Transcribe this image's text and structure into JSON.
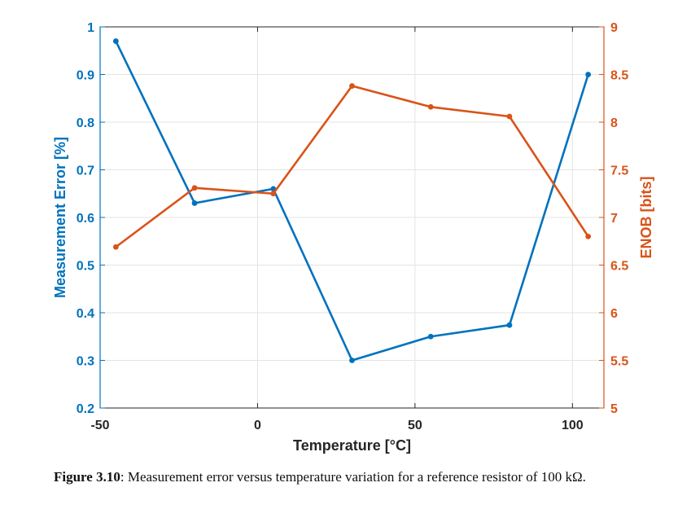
{
  "chart_data": {
    "type": "line",
    "x": [
      -45,
      -20,
      5,
      30,
      55,
      80,
      105
    ],
    "xlim": [
      -50,
      110
    ],
    "xticks": [
      "-50",
      "0",
      "50",
      "100"
    ],
    "xlabel": "Temperature [°C]",
    "grid": true,
    "series": [
      {
        "axis": "left",
        "color": "#0072BD",
        "values": [
          0.97,
          0.63,
          0.66,
          0.3,
          0.35,
          0.374,
          0.9
        ]
      },
      {
        "axis": "right",
        "color": "#D95319",
        "values": [
          6.69,
          7.31,
          7.25,
          8.38,
          8.16,
          8.06,
          6.8
        ]
      }
    ],
    "ylabel_left": "Measurement Error [%]",
    "ylim_left": [
      0.2,
      1
    ],
    "yticks_left": [
      "0.2",
      "0.3",
      "0.4",
      "0.5",
      "0.6",
      "0.7",
      "0.8",
      "0.9",
      "1"
    ],
    "ylabel_right": "ENOB [bits]",
    "ylim_right": [
      5,
      9
    ],
    "yticks_right": [
      "5",
      "5.5",
      "6",
      "6.5",
      "7",
      "7.5",
      "8",
      "8.5",
      "9"
    ]
  },
  "caption": {
    "label": "Figure 3.10",
    "text": ": Measurement error versus temperature variation for a reference resistor of 100 kΩ."
  }
}
